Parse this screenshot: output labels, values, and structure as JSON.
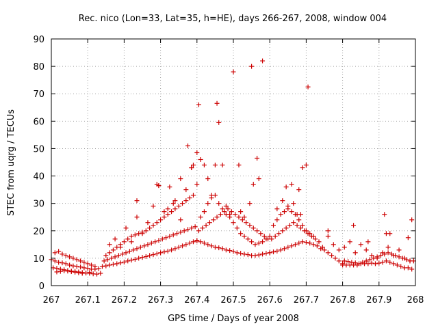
{
  "chart_data": {
    "type": "scatter",
    "title": "Rec. nico (Lon=33, Lat=35, h=HE), days 266-267, 2008, window 004",
    "xlabel": "GPS time / Days of year 2008",
    "ylabel": "STEC from uqrg / TECUs",
    "xlim": [
      267,
      268
    ],
    "ylim": [
      0,
      90
    ],
    "xticks": [
      "267",
      "267.1",
      "267.2",
      "267.3",
      "267.4",
      "267.5",
      "267.6",
      "267.7",
      "267.8",
      "267.9",
      "268"
    ],
    "yticks": [
      "0",
      "10",
      "20",
      "30",
      "40",
      "50",
      "60",
      "70",
      "80",
      "90"
    ],
    "grid": true,
    "marker": "+",
    "color": "#cc0000",
    "series": [
      {
        "x": [
          267.0,
          267.01,
          267.02,
          267.03,
          267.04,
          267.05,
          267.06,
          267.07,
          267.08,
          267.09,
          267.1,
          267.11,
          267.12,
          267.13,
          267.005,
          267.015,
          267.025,
          267.035,
          267.045,
          267.055,
          267.065,
          267.075,
          267.085,
          267.095,
          267.105,
          267.115,
          267.125,
          267.135,
          267.01,
          267.02,
          267.03,
          267.04,
          267.05,
          267.06,
          267.07,
          267.08,
          267.09,
          267.1,
          267.11,
          267.12,
          267.015,
          267.025,
          267.035,
          267.045,
          267.055,
          267.065,
          267.075,
          267.085,
          267.095,
          267.105,
          267.14,
          267.15,
          267.16,
          267.17,
          267.18,
          267.19,
          267.2,
          267.21,
          267.22,
          267.23,
          267.24,
          267.25,
          267.26,
          267.27,
          267.28,
          267.29,
          267.3,
          267.31,
          267.32,
          267.33,
          267.34,
          267.35,
          267.36,
          267.37,
          267.38,
          267.39,
          267.4,
          267.145,
          267.155,
          267.165,
          267.175,
          267.185,
          267.195,
          267.205,
          267.215,
          267.225,
          267.235,
          267.245,
          267.255,
          267.265,
          267.275,
          267.285,
          267.295,
          267.305,
          267.315,
          267.325,
          267.335,
          267.345,
          267.355,
          267.365,
          267.375,
          267.385,
          267.395,
          267.15,
          267.16,
          267.17,
          267.18,
          267.19,
          267.2,
          267.21,
          267.22,
          267.23,
          267.24,
          267.25,
          267.26,
          267.27,
          267.28,
          267.29,
          267.3,
          267.31,
          267.32,
          267.33,
          267.34,
          267.35,
          267.36,
          267.37,
          267.38,
          267.39,
          267.16,
          267.175,
          267.19,
          267.205,
          267.22,
          267.235,
          267.25,
          267.265,
          267.28,
          267.295,
          267.31,
          267.325,
          267.34,
          267.355,
          267.37,
          267.385,
          267.4,
          267.235,
          267.29,
          267.295,
          267.32,
          267.335,
          267.355,
          267.375,
          267.385,
          267.39,
          267.4,
          267.405,
          267.41,
          267.42,
          267.43,
          267.44,
          267.45,
          267.455,
          267.46,
          267.47,
          267.48,
          267.49,
          267.4,
          267.41,
          267.42,
          267.43,
          267.44,
          267.45,
          267.46,
          267.47,
          267.48,
          267.49,
          267.5,
          267.51,
          267.52,
          267.53,
          267.54,
          267.55,
          267.56,
          267.57,
          267.58,
          267.59,
          267.6,
          267.405,
          267.415,
          267.425,
          267.435,
          267.445,
          267.455,
          267.465,
          267.475,
          267.485,
          267.495,
          267.505,
          267.515,
          267.525,
          267.535,
          267.545,
          267.555,
          267.565,
          267.575,
          267.585,
          267.595,
          267.41,
          267.42,
          267.43,
          267.44,
          267.45,
          267.46,
          267.47,
          267.48,
          267.49,
          267.5,
          267.51,
          267.52,
          267.53,
          267.54,
          267.55,
          267.56,
          267.57,
          267.58,
          267.59,
          267.6,
          267.5,
          267.515,
          267.55,
          267.555,
          267.565,
          267.57,
          267.58,
          267.545,
          267.53,
          267.52,
          267.6,
          267.61,
          267.62,
          267.63,
          267.64,
          267.65,
          267.66,
          267.67,
          267.68,
          267.69,
          267.7,
          267.71,
          267.72,
          267.73,
          267.74,
          267.75,
          267.76,
          267.77,
          267.78,
          267.79,
          267.8,
          267.605,
          267.615,
          267.625,
          267.635,
          267.645,
          267.655,
          267.665,
          267.675,
          267.685,
          267.695,
          267.705,
          267.715,
          267.725,
          267.735,
          267.745,
          267.61,
          267.62,
          267.63,
          267.64,
          267.65,
          267.66,
          267.67,
          267.68,
          267.69,
          267.7,
          267.71,
          267.72,
          267.635,
          267.645,
          267.66,
          267.665,
          267.675,
          267.68,
          267.69,
          267.705,
          267.62,
          267.65,
          267.7,
          267.685,
          267.8,
          267.81,
          267.82,
          267.83,
          267.84,
          267.85,
          267.86,
          267.87,
          267.88,
          267.89,
          267.9,
          267.91,
          267.92,
          267.93,
          267.94,
          267.95,
          267.96,
          267.97,
          267.98,
          267.99,
          267.805,
          267.815,
          267.825,
          267.835,
          267.845,
          267.855,
          267.865,
          267.875,
          267.885,
          267.895,
          267.905,
          267.915,
          267.925,
          267.935,
          267.945,
          267.955,
          267.965,
          267.975,
          267.985,
          267.995,
          267.76,
          267.775,
          267.79,
          267.805,
          267.82,
          267.835,
          267.85,
          267.865,
          267.88,
          267.895,
          267.91,
          267.925,
          267.94,
          267.955,
          267.97,
          267.985,
          267.83,
          267.87,
          267.915,
          267.92,
          267.93,
          267.99,
          267.98,
          267.76
        ],
        "y": [
          9.5,
          9,
          8.5,
          8.3,
          8,
          7.5,
          7.2,
          7,
          6.8,
          6.5,
          6.3,
          6,
          6,
          6.2,
          6.5,
          6.3,
          6,
          5.8,
          5.5,
          5.3,
          5.2,
          5,
          4.8,
          4.6,
          4.5,
          4.3,
          4.2,
          4.5,
          12,
          12.5,
          11.5,
          11,
          10.5,
          10,
          9.5,
          9,
          8.5,
          8,
          7.5,
          7,
          5,
          5.2,
          5.4,
          5.3,
          5.1,
          4.9,
          4.7,
          4.5,
          4.6,
          4.8,
          7,
          7.2,
          7.5,
          7.8,
          8,
          8.3,
          8.6,
          9,
          9.3,
          9.6,
          10,
          10.3,
          10.6,
          11,
          11.3,
          11.6,
          12,
          12.3,
          12.6,
          13,
          13.5,
          14,
          14.5,
          15,
          15.5,
          16,
          16.3,
          9,
          9.5,
          10,
          10.5,
          11,
          11.5,
          12,
          12.5,
          13,
          13.5,
          14,
          14.5,
          15,
          15.5,
          16,
          16.5,
          17,
          17.5,
          18,
          18.5,
          19,
          19.5,
          20,
          20.5,
          21,
          21.5,
          11,
          12,
          13,
          14,
          15,
          16,
          17,
          18,
          18.5,
          19,
          19.5,
          20,
          21,
          22,
          23,
          24,
          25,
          26,
          27,
          28,
          29,
          30,
          31,
          32,
          33,
          15,
          17,
          14,
          21,
          16,
          25,
          19,
          23,
          29,
          36.5,
          27,
          36,
          31,
          39,
          35,
          43,
          48.5,
          31,
          37,
          36.5,
          28,
          30,
          24,
          51,
          43,
          44,
          37,
          66,
          46,
          44,
          39,
          33,
          44,
          66.5,
          59.5,
          44,
          29,
          26,
          16.5,
          16,
          15.5,
          15,
          14.5,
          14,
          13.8,
          13.5,
          13,
          12.8,
          12.5,
          12,
          11.8,
          11.5,
          11.3,
          11,
          11,
          11.2,
          11.5,
          11.8,
          12,
          20,
          21,
          22,
          23,
          24,
          25,
          26,
          27,
          28,
          27,
          26,
          25,
          24,
          23,
          22,
          21,
          20,
          19,
          18,
          17,
          25,
          27,
          30,
          32,
          33,
          30,
          28,
          26,
          25,
          23,
          21,
          19,
          18,
          17,
          16,
          15,
          15.5,
          16,
          17,
          18,
          78,
          44,
          80,
          37,
          46.5,
          39,
          82,
          30,
          25,
          27,
          12,
          12.3,
          12.6,
          13,
          13.5,
          14,
          14.5,
          15,
          15.5,
          16,
          15.8,
          15.5,
          15,
          14.5,
          13.5,
          13,
          12,
          11,
          10,
          9,
          8,
          17,
          18,
          19,
          20,
          21,
          22,
          23,
          22,
          21,
          20,
          19,
          18,
          17,
          16,
          14,
          22,
          24,
          26,
          27,
          28,
          27,
          26,
          24,
          22,
          20,
          19,
          18,
          31,
          36,
          37,
          30,
          26,
          35,
          43,
          72.5,
          28,
          29,
          44,
          26,
          7.5,
          7.5,
          7.5,
          7.5,
          7.5,
          8,
          8,
          8,
          8.2,
          8,
          8.2,
          8.5,
          9,
          8.5,
          8,
          7.5,
          7,
          6.5,
          6.5,
          6,
          9,
          8.8,
          8.5,
          8.3,
          8,
          8.5,
          9,
          9.5,
          10,
          10.5,
          11,
          11.5,
          12,
          11.5,
          11,
          10.5,
          10,
          9.5,
          9,
          9,
          18,
          15,
          13,
          14,
          16,
          12,
          15,
          13,
          11,
          10,
          12,
          14,
          11,
          13,
          10,
          9,
          22,
          16,
          26,
          19,
          19,
          24,
          17.5,
          20
        ]
      }
    ]
  }
}
